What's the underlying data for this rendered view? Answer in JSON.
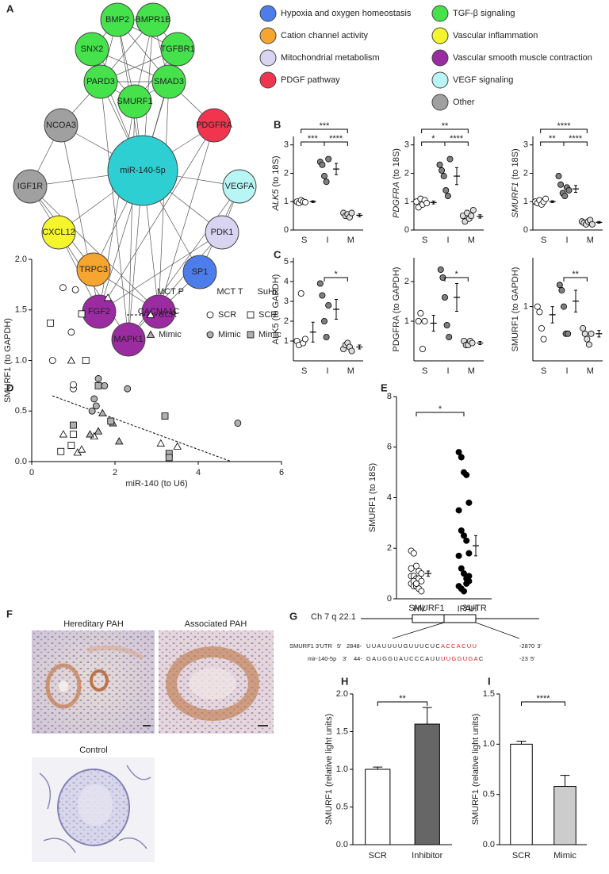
{
  "panel_labels": [
    "A",
    "B",
    "C",
    "D",
    "E",
    "F",
    "G",
    "H",
    "I"
  ],
  "network": {
    "hub": {
      "label": "miR-140-5p",
      "color": "#2ecfd2"
    },
    "nodes": [
      {
        "label": "BMP2",
        "color": "#45e24c"
      },
      {
        "label": "BMPR1B",
        "color": "#45e24c"
      },
      {
        "label": "SNX2",
        "color": "#45e24c"
      },
      {
        "label": "TGFBR1",
        "color": "#45e24c"
      },
      {
        "label": "PARD3",
        "color": "#45e24c"
      },
      {
        "label": "SMAD3",
        "color": "#45e24c"
      },
      {
        "label": "SMURF1",
        "color": "#45e24c"
      },
      {
        "label": "NCOA3",
        "color": "#a0a0a0"
      },
      {
        "label": "PDGFRA",
        "color": "#f2354f"
      },
      {
        "label": "IGF1R",
        "color": "#a0a0a0"
      },
      {
        "label": "VEGFA",
        "color": "#b8f6f6"
      },
      {
        "label": "CXCL12",
        "color": "#f5f52c"
      },
      {
        "label": "PDK1",
        "color": "#d8d4f2"
      },
      {
        "label": "TRPC3",
        "color": "#f5a530"
      },
      {
        "label": "SP1",
        "color": "#4d7deb"
      },
      {
        "label": "FGF2",
        "color": "#9b2ba1"
      },
      {
        "label": "CACNA1C",
        "color": "#9b2ba1"
      },
      {
        "label": "MAPK1",
        "color": "#9b2ba1"
      }
    ]
  },
  "legend": [
    {
      "label": "Hypoxia and oxygen homeostasis",
      "color": "#4d7deb"
    },
    {
      "label": "Cation channel activity",
      "color": "#f5a530"
    },
    {
      "label": "Mitochondrial metabolism",
      "color": "#d8d4f2"
    },
    {
      "label": "PDGF pathway",
      "color": "#f2354f"
    },
    {
      "label": "TGF-β signaling",
      "color": "#45e24c"
    },
    {
      "label": "Vascular inflammation",
      "color": "#f5f52c"
    },
    {
      "label": "Vascular smooth muscle contraction",
      "color": "#9b2ba1"
    },
    {
      "label": "VEGF signaling",
      "color": "#b8f6f6"
    },
    {
      "label": "Other",
      "color": "#a0a0a0"
    }
  ],
  "chart_data": [
    {
      "type": "dot",
      "ylabel_gene": "ALK5",
      "ylabel_unit": "(to 18S)",
      "categories": [
        "S",
        "I",
        "M"
      ],
      "colors": [
        "#ffffff",
        "#808080",
        "#dddddd"
      ],
      "groups": [
        {
          "points": [
            1.0,
            0.95,
            1.05,
            1.0,
            0.98
          ],
          "mean": 1.0,
          "sem": 0.03
        },
        {
          "points": [
            2.4,
            2.3,
            1.9,
            1.7,
            2.5
          ],
          "mean": 2.15,
          "sem": 0.2
        },
        {
          "points": [
            0.6,
            0.5,
            0.55,
            0.45,
            0.6
          ],
          "mean": 0.52,
          "sem": 0.05
        }
      ],
      "ylim": [
        0,
        3.3
      ],
      "yticks": [
        0,
        1,
        2,
        3
      ],
      "annotations": [
        "***",
        "***",
        "****"
      ]
    },
    {
      "type": "dot",
      "ylabel_gene": "PDGFRA",
      "ylabel_unit": "(to 18S)",
      "categories": [
        "S",
        "I",
        "M"
      ],
      "colors": [
        "#ffffff",
        "#808080",
        "#dddddd"
      ],
      "groups": [
        {
          "points": [
            1.0,
            0.8,
            1.1,
            0.9,
            1.05,
            0.95
          ],
          "mean": 0.97,
          "sem": 0.05
        },
        {
          "points": [
            2.3,
            2.1,
            1.9,
            1.4,
            1.2,
            2.5
          ],
          "mean": 1.9,
          "sem": 0.3
        },
        {
          "points": [
            0.5,
            0.3,
            0.6,
            0.4,
            0.5,
            0.7
          ],
          "mean": 0.48,
          "sem": 0.06
        }
      ],
      "ylim": [
        0,
        3.3
      ],
      "yticks": [
        0,
        1,
        2,
        3
      ],
      "annotations": [
        "**",
        "*",
        "****"
      ]
    },
    {
      "type": "dot",
      "ylabel_gene": "SMURF1",
      "ylabel_unit": "(to 18S)",
      "categories": [
        "S",
        "I",
        "M"
      ],
      "colors": [
        "#ffffff",
        "#808080",
        "#dddddd"
      ],
      "groups": [
        {
          "points": [
            1.0,
            0.95,
            1.05,
            0.9,
            1.0,
            1.1
          ],
          "mean": 1.0,
          "sem": 0.03
        },
        {
          "points": [
            1.9,
            1.6,
            1.3,
            1.2,
            1.5,
            1.4
          ],
          "mean": 1.45,
          "sem": 0.12
        },
        {
          "points": [
            0.3,
            0.25,
            0.2,
            0.3,
            0.35,
            0.2
          ],
          "mean": 0.27,
          "sem": 0.03
        }
      ],
      "ylim": [
        0,
        3.3
      ],
      "yticks": [
        0,
        1,
        2,
        3
      ],
      "annotations": [
        "****",
        "**",
        "****"
      ]
    },
    {
      "type": "dot",
      "ylabel": "ALK5 (to GAPDH)",
      "categories": [
        "S",
        "I",
        "M"
      ],
      "colors": [
        "#ffffff",
        "#808080",
        "#dddddd"
      ],
      "groups": [
        {
          "points": [
            1.0,
            0.8,
            3.4,
            0.9,
            1.1
          ],
          "mean": 1.45,
          "sem": 0.5
        },
        {
          "points": [
            3.9,
            3.3,
            2.0,
            1.2,
            2.8
          ],
          "mean": 2.6,
          "sem": 0.5
        },
        {
          "points": [
            0.6,
            0.8,
            0.9,
            0.7,
            0.5
          ],
          "mean": 0.7,
          "sem": 0.1
        }
      ],
      "ylim": [
        0,
        5.2
      ],
      "yticks": [
        1,
        2,
        3,
        4,
        5
      ],
      "annotations": [
        "*"
      ]
    },
    {
      "type": "dot",
      "ylabel": "PDGFRA (to GAPDH)",
      "categories": [
        "S",
        "I",
        "M"
      ],
      "colors": [
        "#ffffff",
        "#808080",
        "#dddddd"
      ],
      "groups": [
        {
          "points": [
            1.0,
            1.2,
            0.3,
            1.0
          ],
          "mean": 0.95,
          "sem": 0.2
        },
        {
          "points": [
            2.3,
            2.1,
            1.6,
            0.9,
            0.6
          ],
          "mean": 1.6,
          "sem": 0.35
        },
        {
          "points": [
            0.5,
            0.4,
            0.4,
            0.5,
            0.45
          ],
          "mean": 0.45,
          "sem": 0.04
        }
      ],
      "ylim": [
        0,
        2.6
      ],
      "yticks": [
        1,
        2
      ],
      "annotations": [
        "*"
      ]
    },
    {
      "type": "dot",
      "ylabel": "SMURF1 (to GAPDH)",
      "categories": [
        "S",
        "I",
        "M"
      ],
      "colors": [
        "#ffffff",
        "#808080",
        "#dddddd"
      ],
      "groups": [
        {
          "points": [
            1.0,
            0.9,
            0.6,
            0.4
          ],
          "mean": 0.85,
          "sem": 0.15
        },
        {
          "points": [
            1.4,
            1.3,
            1.0,
            0.5,
            0.5
          ],
          "mean": 1.1,
          "sem": 0.2
        },
        {
          "points": [
            0.6,
            0.5,
            0.4,
            0.3,
            0.5
          ],
          "mean": 0.5,
          "sem": 0.06
        }
      ],
      "ylim": [
        0,
        1.9
      ],
      "yticks": [
        1
      ],
      "annotations": [
        "**"
      ]
    },
    {
      "type": "scatter",
      "xlabel": "miR-140 (to U6)",
      "ylabel": "SMURF1 (to GAPDH)",
      "xlim": [
        0,
        6
      ],
      "xticks": [
        0,
        2,
        4,
        6
      ],
      "ylim": [
        0,
        2
      ],
      "yticks": [
        {
          "value": 0,
          "label": "0.0"
        },
        0.5,
        {
          "value": 1,
          "label": "1.0"
        },
        1.5,
        {
          "value": 2,
          "label": "2.0"
        }
      ],
      "trend": {
        "x": [
          0.5,
          4.8
        ],
        "y": [
          0.65,
          0
        ]
      },
      "groups": [
        {
          "name": "MCT P",
          "series": [
            {
              "name": "SCR",
              "marker": "triangle",
              "color": "#ffffff",
              "x": [
                0.95,
                1.83,
                0.76,
                1.1,
                1.2,
                1.5,
                3.1,
                3.5
              ],
              "y": [
                1.0,
                1.62,
                0.27,
                0.09,
                0.12,
                0.25,
                0.18,
                0.15
              ]
            },
            {
              "name": "Mimic",
              "marker": "triangle",
              "color": "#b0b0b0",
              "x": [
                1.7,
                1.95,
                2.1,
                1.6,
                1.4
              ],
              "y": [
                0.48,
                0.38,
                0.2,
                0.3,
                0.27
              ]
            }
          ]
        },
        {
          "name": "MCT T",
          "series": [
            {
              "name": "SCR",
              "marker": "circle",
              "color": "#ffffff",
              "x": [
                0.75,
                1.05,
                0.95,
                0.5,
                1.0,
                1.0
              ],
              "y": [
                1.72,
                1.7,
                1.28,
                1.0,
                0.72,
                0.76
              ]
            },
            {
              "name": "Mimic",
              "marker": "circle",
              "color": "#b0b0b0",
              "x": [
                1.6,
                1.5,
                1.55,
                2.3,
                1.9,
                4.95,
                1.45,
                1.75
              ],
              "y": [
                0.82,
                0.62,
                0.55,
                0.72,
                0.4,
                0.38,
                0.5,
                0.75
              ]
            }
          ]
        },
        {
          "name": "SuHx",
          "series": [
            {
              "name": "SCR",
              "marker": "square",
              "color": "#ffffff",
              "x": [
                0.45,
                1.2,
                1.3,
                0.7,
                1.0,
                0.95
              ],
              "y": [
                1.37,
                1.46,
                1.0,
                0.1,
                0.27,
                0.16
              ]
            },
            {
              "name": "Mimic",
              "marker": "square",
              "color": "#b0b0b0",
              "x": [
                1.6,
                1.0,
                1.9,
                3.2,
                3.3,
                3.3
              ],
              "y": [
                0.75,
                0.36,
                0.4,
                0.45,
                0.08,
                0.04
              ]
            }
          ]
        }
      ]
    },
    {
      "type": "dot",
      "ylabel": "SMURF1 (to 18S)",
      "categories": [
        "HV",
        "IPAH"
      ],
      "colors": [
        "#ffffff",
        "#000000"
      ],
      "groups": [
        {
          "points": [
            1.9,
            1.8,
            1.3,
            1.1,
            1.0,
            0.9,
            0.9,
            0.8,
            0.8,
            0.7,
            0.6,
            0.5,
            0.5,
            0.4,
            0.3,
            1.2,
            0.7,
            0.6
          ],
          "mean": 1.0,
          "sem": 0.1
        },
        {
          "points": [
            5.8,
            5.6,
            5.0,
            4.9,
            3.8,
            3.5,
            2.7,
            2.5,
            2.3,
            1.8,
            1.7,
            1.2,
            1.0,
            0.8,
            0.7,
            0.5,
            0.4,
            0.3,
            0.6,
            0.9
          ],
          "mean": 2.1,
          "sem": 0.4
        }
      ],
      "ylim": [
        0,
        8
      ],
      "yticks": [
        0,
        2,
        4,
        6,
        8
      ],
      "annotations": [
        "*"
      ]
    },
    {
      "type": "bar",
      "ylabel": "SMURF1 (relative light units)",
      "categories": [
        "SCR",
        "Inhibitor"
      ],
      "values": [
        1.0,
        1.6
      ],
      "errors": [
        0.03,
        0.22
      ],
      "colors": [
        "#ffffff",
        "#666666"
      ],
      "ylim": [
        0,
        2
      ],
      "yticks": [
        {
          "value": 0,
          "label": "0.0"
        },
        0.5,
        {
          "value": 1,
          "label": "1.0"
        },
        1.5,
        {
          "value": 2,
          "label": "2.0"
        }
      ],
      "annotations": [
        "**"
      ]
    },
    {
      "type": "bar",
      "ylabel": "SMURF1 (relative light units)",
      "categories": [
        "SCR",
        "Mimic"
      ],
      "values": [
        1.0,
        0.58
      ],
      "errors": [
        0.03,
        0.11
      ],
      "colors": [
        "#ffffff",
        "#cccccc"
      ],
      "ylim": [
        0,
        1.5
      ],
      "yticks": [
        {
          "value": 0,
          "label": "0.0"
        },
        0.5,
        {
          "value": 1,
          "label": "1.0"
        },
        1.5
      ],
      "annotations": [
        "****"
      ]
    }
  ],
  "histology": {
    "panels": [
      {
        "title": "Hereditary PAH"
      },
      {
        "title": "Associated PAH"
      },
      {
        "title": "Control"
      }
    ]
  },
  "schematic": {
    "chromosome": "Ch 7 q 22.1",
    "gene": "SMURF1",
    "utr": "3′UTR",
    "rows": [
      {
        "name": "SMURF1 3′UTR",
        "end5": "5′",
        "start": "2848-",
        "seq": "UUAUUUUGUUUCUC",
        "match": "ACCACUU",
        "stop": "-2870",
        "end3": "3′"
      },
      {
        "name": "mir-140-5p",
        "end5": "3′",
        "start": "44-",
        "seq": "GAUGGUAUCCCAUU",
        "match": "UUGGUGA",
        "tail": "C",
        "stop": "-23",
        "end3": "5′"
      }
    ]
  }
}
